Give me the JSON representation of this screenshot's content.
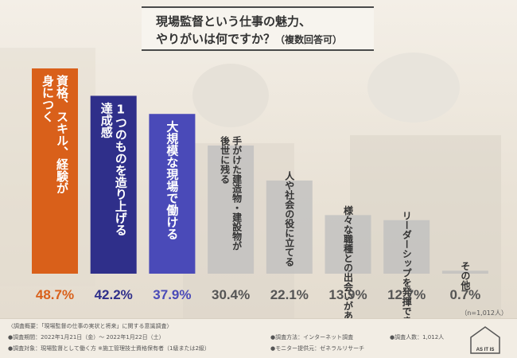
{
  "title": {
    "line1": "現場監督という仕事の魅力、",
    "line2": "やりがいは何ですか？",
    "line2_note": "（複数回答可）"
  },
  "sample_note": "（n=1,012人）",
  "footer": {
    "overview": "〈調査概要：「現場監督の仕事の実状と将来」に関する意識調査〉",
    "period": "●調査期間：2022年1月21日（金）～ 2022年1月22日（土）",
    "target": "●調査対象：現場監督として働く方 ※施工管理技士資格保有者（1級または2級）",
    "method": "●調査方法：インターネット調査",
    "respondents": "●調査人数：1,012人",
    "provider": "●モニター提供元：ゼネラルリサーチ"
  },
  "logo_text": "AS IT IS",
  "colors": {
    "first": "#d9601a",
    "second": "#2f2f8a",
    "third": "#4a4ab8",
    "rest": "#bdbdbd",
    "pct_first": "#d9601a",
    "pct_second": "#2f2f8a",
    "pct_third": "#4a4ab8",
    "pct_rest": "#555555"
  },
  "chart_data": {
    "type": "bar",
    "title": "現場監督という仕事の魅力、やりがいは何ですか？（複数回答可）",
    "unit": "%",
    "ylim": [
      0,
      50
    ],
    "categories": [
      "資格、スキル、経験が身につく",
      "1つのものを造り上げる達成感",
      "大規模な現場で働ける",
      "手がけた建造物・建設物が後世に残る",
      "人や社会の役に立てる",
      "様々な職種との出会いがある",
      "リーダーシップを発揮できる",
      "その他"
    ],
    "label_lines": [
      [
        "資格、スキル、経験が",
        "身につく"
      ],
      [
        "1つのものを造り上げる",
        "達成感"
      ],
      [
        "大規模な現場で働ける"
      ],
      [
        "手がけた建造物・建設物が",
        "後世に残る"
      ],
      [
        "人や社会の役に立てる"
      ],
      [
        "様々な職種との出会いがある"
      ],
      [
        "リーダーシップを発揮できる"
      ],
      [
        "その他"
      ]
    ],
    "values": [
      48.7,
      42.2,
      37.9,
      30.4,
      22.1,
      13.9,
      12.7,
      0.7
    ],
    "value_labels": [
      "48.7%",
      "42.2%",
      "37.9%",
      "30.4%",
      "22.1%",
      "13.9%",
      "12.7%",
      "0.7%"
    ]
  }
}
